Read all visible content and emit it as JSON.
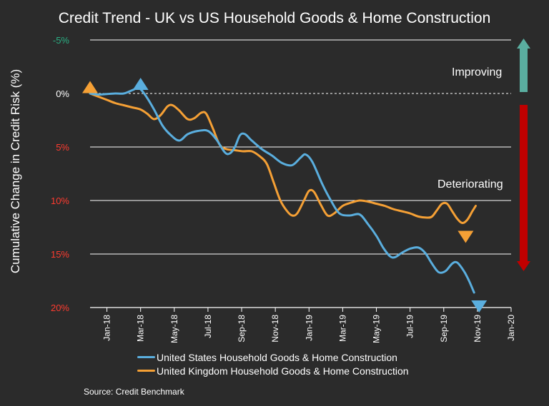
{
  "chart_data": {
    "type": "line",
    "title": "Credit Trend - UK vs US  Household Goods & Home Construction",
    "ylabel": "Cumulative Change in Credit Risk (%)",
    "xlabel": "",
    "ylim": [
      -5,
      20
    ],
    "y_inverted": true,
    "y_ticks": [
      {
        "value": -5,
        "label": "-5%",
        "color": "#2bb084"
      },
      {
        "value": 0,
        "label": "0%",
        "color": "#ffffff"
      },
      {
        "value": 5,
        "label": "5%",
        "color": "#ff3b2f"
      },
      {
        "value": 10,
        "label": "10%",
        "color": "#ff3b2f"
      },
      {
        "value": 15,
        "label": "15%",
        "color": "#ff3b2f"
      },
      {
        "value": 20,
        "label": "20%",
        "color": "#ff3b2f"
      }
    ],
    "x_range": [
      0,
      25
    ],
    "x_ticks": [
      {
        "pos": 1,
        "label": "Jan-18"
      },
      {
        "pos": 3,
        "label": "Mar-18"
      },
      {
        "pos": 5,
        "label": "May-18"
      },
      {
        "pos": 7,
        "label": "Jul-18"
      },
      {
        "pos": 9,
        "label": "Sep-18"
      },
      {
        "pos": 11,
        "label": "Nov-18"
      },
      {
        "pos": 13,
        "label": "Jan-19"
      },
      {
        "pos": 15,
        "label": "Mar-19"
      },
      {
        "pos": 17,
        "label": "May-19"
      },
      {
        "pos": 19,
        "label": "Jul-19"
      },
      {
        "pos": 21,
        "label": "Sep-19"
      },
      {
        "pos": 23,
        "label": "Nov-19"
      },
      {
        "pos": 25,
        "label": "Jan-20"
      }
    ],
    "series": [
      {
        "name": "United States Household Goods & Home Construction",
        "color": "#5aaede",
        "points": [
          [
            0.0,
            0.0
          ],
          [
            0.5,
            0.1
          ],
          [
            1.0,
            0.05
          ],
          [
            1.5,
            0.0
          ],
          [
            2.0,
            0.0
          ],
          [
            2.5,
            -0.3
          ],
          [
            2.9,
            -0.5
          ],
          [
            3.3,
            0.2
          ],
          [
            3.8,
            1.5
          ],
          [
            4.3,
            3.0
          ],
          [
            4.8,
            3.9
          ],
          [
            5.3,
            4.4
          ],
          [
            5.8,
            3.8
          ],
          [
            6.4,
            3.5
          ],
          [
            7.0,
            3.5
          ],
          [
            7.5,
            4.3
          ],
          [
            8.0,
            5.5
          ],
          [
            8.3,
            5.6
          ],
          [
            8.6,
            5.0
          ],
          [
            8.9,
            3.9
          ],
          [
            9.2,
            3.8
          ],
          [
            9.6,
            4.4
          ],
          [
            10.2,
            5.2
          ],
          [
            10.8,
            5.8
          ],
          [
            11.4,
            6.5
          ],
          [
            12.0,
            6.7
          ],
          [
            12.5,
            6.0
          ],
          [
            12.8,
            5.7
          ],
          [
            13.2,
            6.4
          ],
          [
            13.8,
            8.5
          ],
          [
            14.3,
            10.0
          ],
          [
            14.8,
            11.2
          ],
          [
            15.4,
            11.4
          ],
          [
            16.0,
            11.3
          ],
          [
            16.5,
            12.2
          ],
          [
            17.0,
            13.3
          ],
          [
            17.4,
            14.4
          ],
          [
            17.8,
            15.2
          ],
          [
            18.1,
            15.3
          ],
          [
            18.5,
            14.9
          ],
          [
            19.0,
            14.5
          ],
          [
            19.5,
            14.4
          ],
          [
            19.9,
            14.9
          ],
          [
            20.3,
            15.9
          ],
          [
            20.7,
            16.7
          ],
          [
            21.1,
            16.6
          ],
          [
            21.5,
            15.9
          ],
          [
            21.8,
            15.8
          ],
          [
            22.2,
            16.6
          ],
          [
            22.5,
            17.5
          ],
          [
            22.8,
            18.6
          ]
        ]
      },
      {
        "name": "United Kingdom Household Goods & Home Construction",
        "color": "#f5a035",
        "points": [
          [
            0.0,
            0.0
          ],
          [
            0.5,
            0.3
          ],
          [
            1.0,
            0.6
          ],
          [
            1.5,
            0.9
          ],
          [
            2.0,
            1.1
          ],
          [
            2.5,
            1.3
          ],
          [
            3.0,
            1.5
          ],
          [
            3.4,
            1.9
          ],
          [
            3.8,
            2.4
          ],
          [
            4.2,
            2.0
          ],
          [
            4.6,
            1.2
          ],
          [
            4.9,
            1.1
          ],
          [
            5.3,
            1.6
          ],
          [
            5.8,
            2.4
          ],
          [
            6.2,
            2.3
          ],
          [
            6.6,
            1.8
          ],
          [
            6.9,
            1.9
          ],
          [
            7.3,
            3.3
          ],
          [
            7.7,
            4.8
          ],
          [
            8.1,
            5.2
          ],
          [
            8.6,
            5.3
          ],
          [
            9.1,
            5.4
          ],
          [
            9.6,
            5.4
          ],
          [
            10.1,
            5.9
          ],
          [
            10.5,
            6.6
          ],
          [
            10.9,
            8.3
          ],
          [
            11.3,
            10.0
          ],
          [
            11.7,
            11.0
          ],
          [
            12.0,
            11.4
          ],
          [
            12.3,
            11.2
          ],
          [
            12.7,
            10.0
          ],
          [
            13.0,
            9.1
          ],
          [
            13.3,
            9.2
          ],
          [
            13.7,
            10.4
          ],
          [
            14.1,
            11.4
          ],
          [
            14.5,
            11.2
          ],
          [
            15.0,
            10.5
          ],
          [
            15.5,
            10.2
          ],
          [
            16.0,
            10.0
          ],
          [
            16.5,
            10.1
          ],
          [
            17.0,
            10.3
          ],
          [
            17.5,
            10.5
          ],
          [
            18.0,
            10.8
          ],
          [
            18.5,
            11.0
          ],
          [
            19.0,
            11.2
          ],
          [
            19.5,
            11.5
          ],
          [
            20.0,
            11.6
          ],
          [
            20.3,
            11.5
          ],
          [
            20.6,
            10.9
          ],
          [
            20.9,
            10.3
          ],
          [
            21.2,
            10.3
          ],
          [
            21.5,
            11.0
          ],
          [
            21.8,
            11.7
          ],
          [
            22.1,
            12.1
          ],
          [
            22.4,
            11.8
          ],
          [
            22.7,
            11.0
          ],
          [
            22.9,
            10.5
          ]
        ]
      }
    ],
    "markers": [
      {
        "name": "us-up-marker",
        "series": 0,
        "x": 3.0,
        "y": -0.9,
        "direction": "up",
        "color": "#5aaede"
      },
      {
        "name": "uk-up-marker",
        "series": 1,
        "x": 0.0,
        "y": -0.6,
        "direction": "up",
        "color": "#f5a035"
      },
      {
        "name": "uk-down-marker",
        "series": 1,
        "x": 22.3,
        "y": 13.4,
        "direction": "down",
        "color": "#f5a035"
      },
      {
        "name": "us-down-marker",
        "series": 0,
        "x": 23.1,
        "y": 19.9,
        "direction": "down",
        "color": "#5aaede"
      }
    ],
    "annotations": {
      "improving": "Improving",
      "deteriorating": "Deteriorating",
      "improving_arrow_color": "#5aaea0",
      "deteriorating_arrow_color": "#c00000"
    },
    "legend": [
      {
        "label": "United States Household Goods & Home Construction",
        "color": "#5aaede"
      },
      {
        "label": "United Kingdom Household Goods & Home Construction",
        "color": "#f5a035"
      }
    ],
    "source": "Source: Credit Benchmark"
  }
}
